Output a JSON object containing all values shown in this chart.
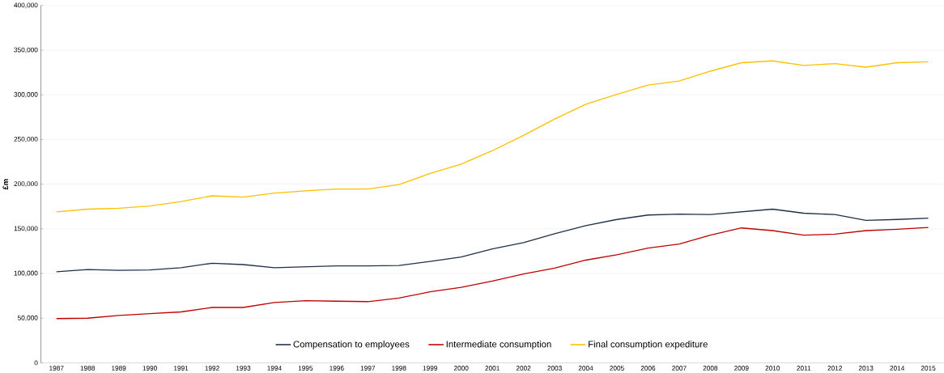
{
  "chart_data": {
    "type": "line",
    "ylabel": "£m",
    "categories": [
      "1987",
      "1988",
      "1989",
      "1990",
      "1991",
      "1992",
      "1993",
      "1994",
      "1995",
      "1996",
      "1997",
      "1998",
      "1999",
      "2000",
      "2001",
      "2002",
      "2003",
      "2004",
      "2005",
      "2006",
      "2007",
      "2008",
      "2009",
      "2010",
      "2011",
      "2012",
      "2013",
      "2014",
      "2015"
    ],
    "series": [
      {
        "name": "Compensation to employees",
        "color": "#1f3049",
        "values": [
          102000,
          104500,
          103500,
          104000,
          106500,
          111500,
          110000,
          106500,
          107500,
          108500,
          108500,
          109000,
          113500,
          118500,
          127500,
          134500,
          144500,
          153500,
          160500,
          165500,
          166500,
          166000,
          169000,
          172000,
          167500,
          166000,
          159500,
          160500,
          162000
        ]
      },
      {
        "name": "Intermediate consumption",
        "color": "#c00000",
        "values": [
          49500,
          50000,
          53000,
          55000,
          57000,
          62000,
          62000,
          67500,
          69500,
          69000,
          68500,
          72500,
          79500,
          84500,
          91500,
          99500,
          106000,
          115000,
          121000,
          128500,
          133000,
          143000,
          151000,
          148000,
          143000,
          144000,
          148000,
          149500,
          151500
        ]
      },
      {
        "name": "Final consumption expediture",
        "color": "#ffc000",
        "values": [
          169000,
          172000,
          173000,
          175500,
          180500,
          187000,
          185500,
          190000,
          192500,
          194500,
          194500,
          199500,
          212000,
          222500,
          237500,
          254500,
          273000,
          289500,
          300500,
          311000,
          315500,
          326500,
          336000,
          338000,
          333000,
          335000,
          331000,
          336000,
          337000
        ]
      }
    ],
    "ylim": [
      0,
      400000
    ],
    "yticks": [
      {
        "value": 0,
        "label": "0"
      },
      {
        "value": 50000,
        "label": "50,000"
      },
      {
        "value": 100000,
        "label": "100,000"
      },
      {
        "value": 150000,
        "label": "150,000"
      },
      {
        "value": 200000,
        "label": "200,000"
      },
      {
        "value": 250000,
        "label": "250,000"
      },
      {
        "value": 300000,
        "label": "300,000"
      },
      {
        "value": 350000,
        "label": "350,000"
      },
      {
        "value": 400000,
        "label": "400,000"
      }
    ],
    "grid": "y",
    "legend": "bottom",
    "marker": "none",
    "line_style": "solid"
  }
}
